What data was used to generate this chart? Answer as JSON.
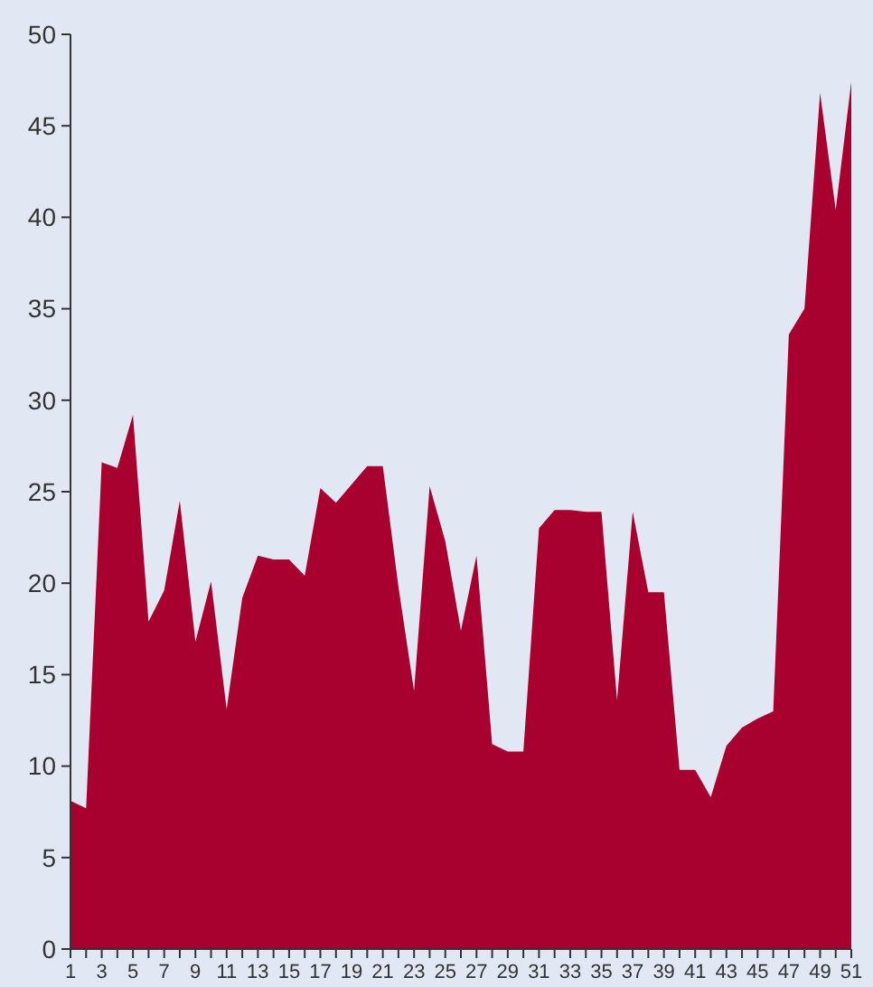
{
  "chart_data": {
    "type": "area",
    "x": [
      1,
      2,
      3,
      4,
      5,
      6,
      7,
      8,
      9,
      10,
      11,
      12,
      13,
      14,
      15,
      16,
      17,
      18,
      19,
      20,
      21,
      22,
      23,
      24,
      25,
      26,
      27,
      28,
      29,
      30,
      31,
      32,
      33,
      34,
      35,
      36,
      37,
      38,
      39,
      40,
      41,
      42,
      43,
      44,
      45,
      46,
      47,
      48,
      49,
      50,
      51
    ],
    "series": [
      {
        "color": "#a8002f",
        "values": [
          8.1,
          7.7,
          26.6,
          26.3,
          29.2,
          17.9,
          19.6,
          24.5,
          16.8,
          20.1,
          13.1,
          19.2,
          21.5,
          21.3,
          21.3,
          20.4,
          25.2,
          24.4,
          25.4,
          26.4,
          26.4,
          19.8,
          14.1,
          25.3,
          22.3,
          17.4,
          21.5,
          11.2,
          10.8,
          10.8,
          23.0,
          24.0,
          24.0,
          23.9,
          23.9,
          13.6,
          23.9,
          19.5,
          19.5,
          9.8,
          9.8,
          8.3,
          11.1,
          12.1,
          12.6,
          13.0,
          33.6,
          35.0,
          46.8,
          40.4,
          47.4
        ]
      }
    ],
    "xlim": [
      1,
      51
    ],
    "xticks": [
      1,
      {
        "value": 2,
        "label": null
      },
      3,
      {
        "value": 4,
        "label": null
      },
      5,
      {
        "value": 6,
        "label": null
      },
      7,
      {
        "value": 8,
        "label": null
      },
      9,
      {
        "value": 10,
        "label": null
      },
      11,
      {
        "value": 12,
        "label": null
      },
      13,
      {
        "value": 14,
        "label": null
      },
      15,
      {
        "value": 16,
        "label": null
      },
      17,
      {
        "value": 18,
        "label": null
      },
      19,
      {
        "value": 20,
        "label": null
      },
      21,
      {
        "value": 22,
        "label": null
      },
      23,
      {
        "value": 24,
        "label": null
      },
      25,
      {
        "value": 26,
        "label": null
      },
      27,
      {
        "value": 28,
        "label": null
      },
      29,
      {
        "value": 30,
        "label": null
      },
      31,
      {
        "value": 32,
        "label": null
      },
      33,
      {
        "value": 34,
        "label": null
      },
      35,
      {
        "value": 36,
        "label": null
      },
      37,
      {
        "value": 38,
        "label": null
      },
      39,
      {
        "value": 40,
        "label": null
      },
      41,
      {
        "value": 42,
        "label": null
      },
      43,
      {
        "value": 44,
        "label": null
      },
      45,
      {
        "value": 46,
        "label": null
      },
      47,
      {
        "value": 48,
        "label": null
      },
      49,
      {
        "value": 50,
        "label": null
      },
      51
    ],
    "ylim": [
      0,
      50
    ],
    "yticks": [
      0,
      5,
      10,
      15,
      20,
      25,
      30,
      35,
      40,
      45,
      50
    ]
  }
}
